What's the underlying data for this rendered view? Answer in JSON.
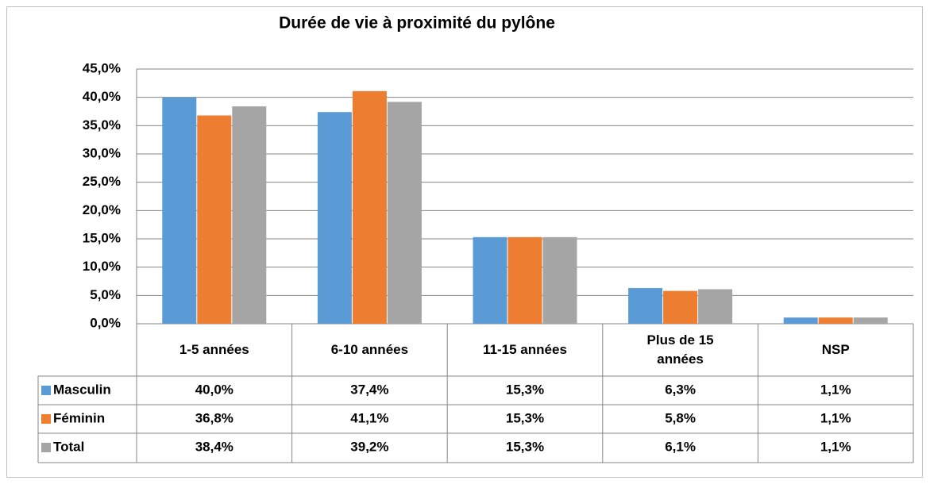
{
  "chart_data": {
    "type": "bar",
    "title": "Durée de vie à proximité du pylône",
    "categories": [
      "1-5 années",
      "6-10 années",
      "11-15 années",
      "Plus de 15 années",
      "NSP"
    ],
    "series": [
      {
        "name": "Masculin",
        "color": "#5b9bd5",
        "values": [
          40.0,
          37.4,
          15.3,
          6.3,
          1.1
        ],
        "value_labels": [
          "40,0%",
          "37,4%",
          "15,3%",
          "6,3%",
          "1,1%"
        ]
      },
      {
        "name": "Féminin",
        "color": "#ed7d31",
        "values": [
          36.8,
          41.1,
          15.3,
          5.8,
          1.1
        ],
        "value_labels": [
          "36,8%",
          "41,1%",
          "15,3%",
          "5,8%",
          "1,1%"
        ]
      },
      {
        "name": "Total",
        "color": "#a5a5a5",
        "values": [
          38.4,
          39.2,
          15.3,
          6.1,
          1.1
        ],
        "value_labels": [
          "38,4%",
          "39,2%",
          "15,3%",
          "6,1%",
          "1,1%"
        ]
      }
    ],
    "ylim": [
      0,
      45
    ],
    "yticks": [
      {
        "value": 0,
        "label": "0,0%"
      },
      {
        "value": 5,
        "label": "5,0%"
      },
      {
        "value": 10,
        "label": "10,0%"
      },
      {
        "value": 15,
        "label": "15,0%"
      },
      {
        "value": 20,
        "label": "20,0%"
      },
      {
        "value": 25,
        "label": "25,0%"
      },
      {
        "value": 30,
        "label": "30,0%"
      },
      {
        "value": 35,
        "label": "35,0%"
      },
      {
        "value": 40,
        "label": "40,0%"
      },
      {
        "value": 45,
        "label": "45,0%"
      }
    ],
    "grid": true
  }
}
